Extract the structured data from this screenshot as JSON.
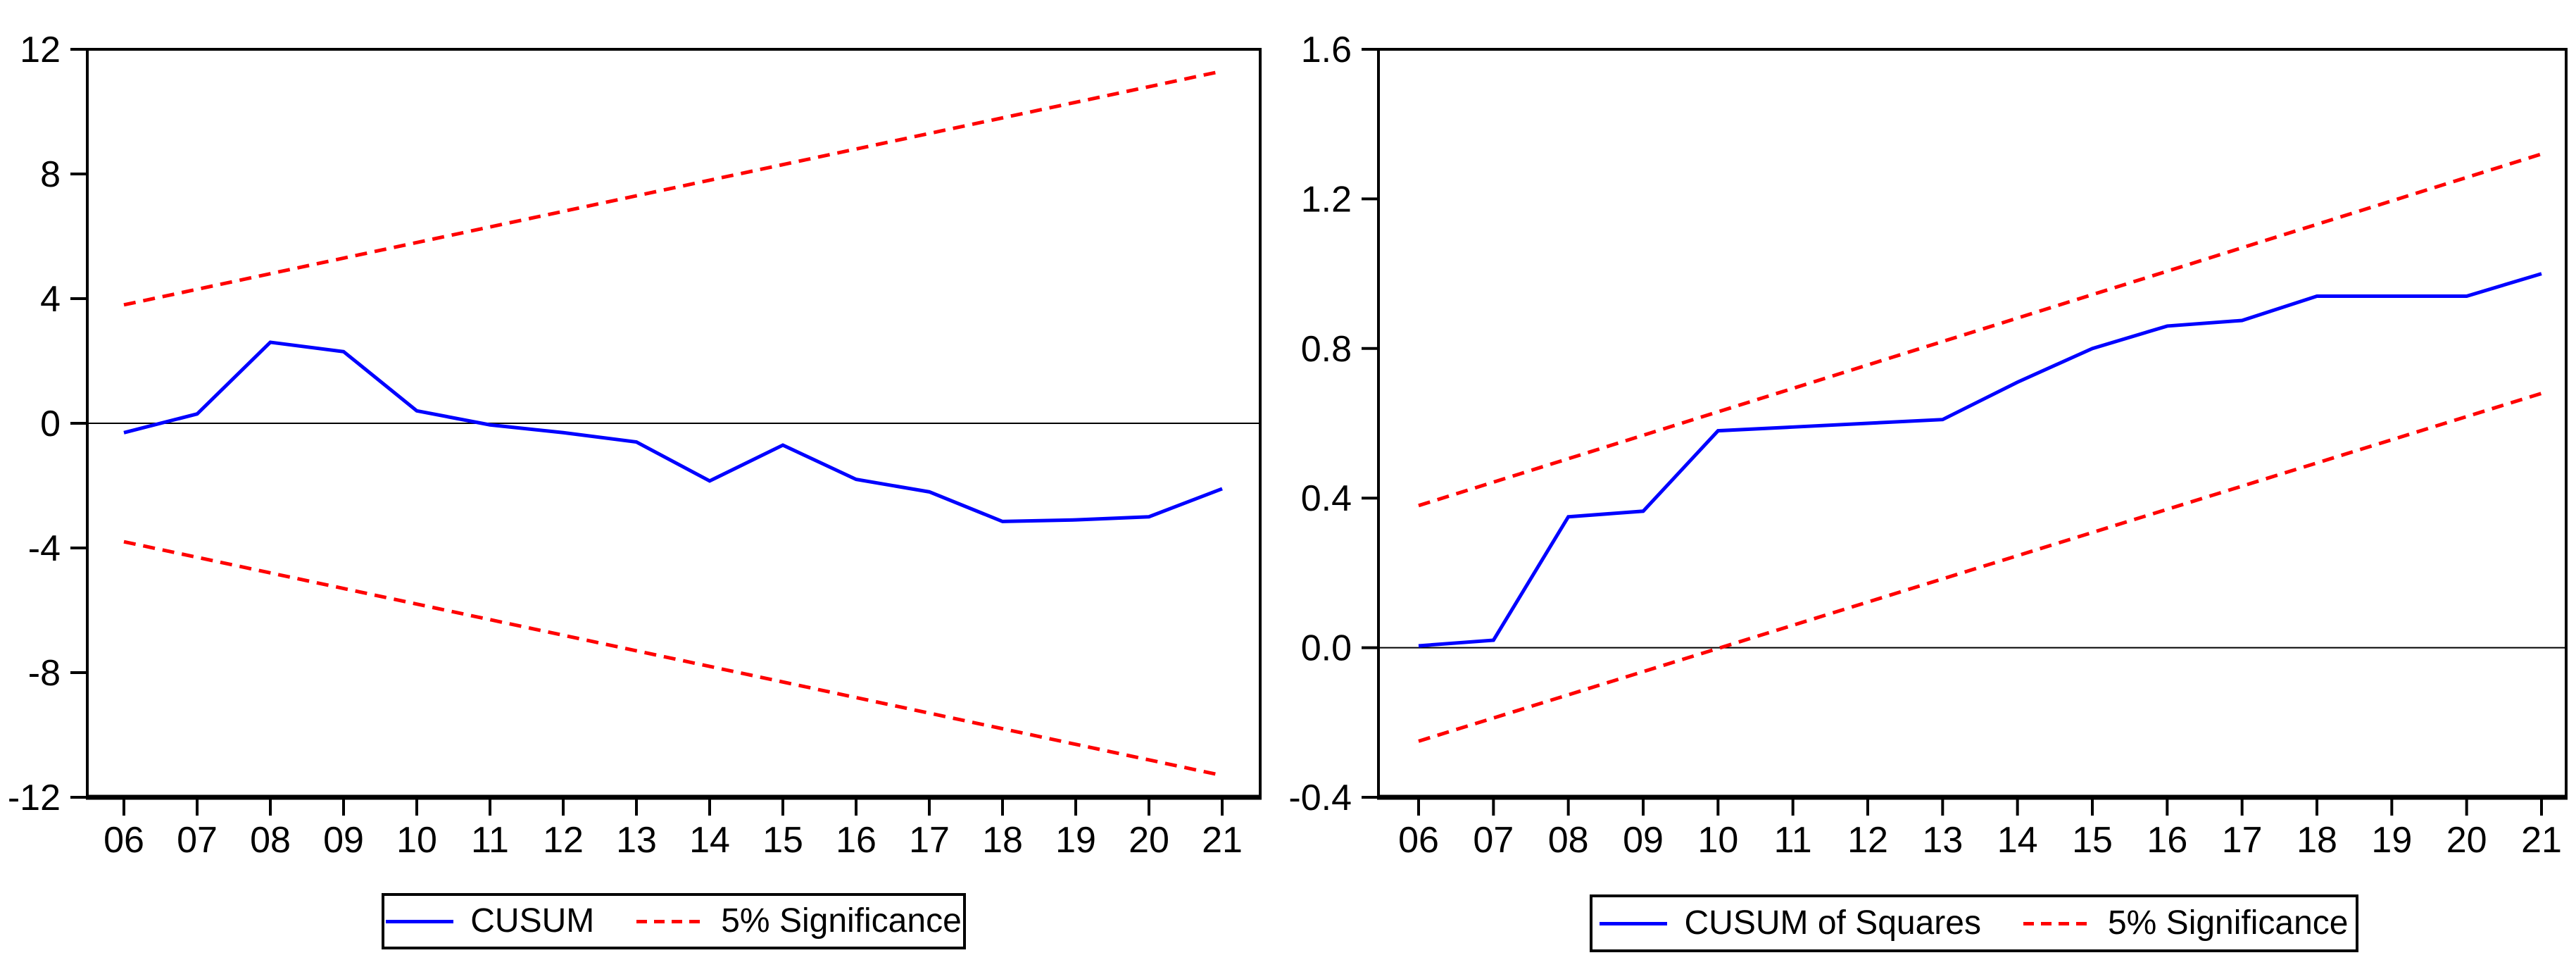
{
  "figure": {
    "background": "#ffffff",
    "text_color": "#000000"
  },
  "chart_data": [
    {
      "name": "cusum",
      "type": "line",
      "title": "",
      "xlabel": "",
      "ylabel": "",
      "grid": false,
      "zero_line": true,
      "legend_position": "bottom-center",
      "x_tick_labels": [
        "06",
        "07",
        "08",
        "09",
        "10",
        "11",
        "12",
        "13",
        "14",
        "15",
        "16",
        "17",
        "18",
        "19",
        "20",
        "21"
      ],
      "ylim": [
        -12,
        12
      ],
      "yticks": [
        12,
        8,
        4,
        0,
        -4,
        -8,
        -12
      ],
      "y_tick_labels": [
        "12",
        "8",
        "4",
        "0",
        "-4",
        "-8",
        "-12"
      ],
      "series": [
        {
          "name": "cusum-line",
          "color": "#0000ff",
          "dash": "solid",
          "values": [
            -0.3,
            0.3,
            2.6,
            2.3,
            0.4,
            -0.05,
            -0.3,
            -0.6,
            -1.85,
            -0.7,
            -1.8,
            -2.2,
            -3.15,
            -3.1,
            -3.0,
            -2.1
          ]
        },
        {
          "name": "significance-upper-line",
          "color": "#ff0000",
          "dash": "dashed",
          "endpoints": true,
          "values": [
            3.8,
            11.3
          ]
        },
        {
          "name": "significance-lower-line",
          "color": "#ff0000",
          "dash": "dashed",
          "endpoints": true,
          "values": [
            -3.8,
            -11.3
          ]
        }
      ],
      "legend": [
        {
          "label": "CUSUM",
          "color": "#0000ff",
          "dash": "solid"
        },
        {
          "label": "5% Significance",
          "color": "#ff0000",
          "dash": "dashed"
        }
      ]
    },
    {
      "name": "cusum-of-squares",
      "type": "line",
      "title": "",
      "xlabel": "",
      "ylabel": "",
      "grid": false,
      "zero_line": true,
      "legend_position": "bottom-center",
      "x_tick_labels": [
        "06",
        "07",
        "08",
        "09",
        "10",
        "11",
        "12",
        "13",
        "14",
        "15",
        "16",
        "17",
        "18",
        "19",
        "20",
        "21"
      ],
      "ylim": [
        -0.4,
        1.6
      ],
      "yticks": [
        1.6,
        1.2,
        0.8,
        0.4,
        0.0,
        -0.4
      ],
      "y_tick_labels": [
        "1.6",
        "1.2",
        "0.8",
        "0.4",
        "0.0",
        "-0.4"
      ],
      "series": [
        {
          "name": "cusum-of-squares-line",
          "color": "#0000ff",
          "dash": "solid",
          "values": [
            0.005,
            0.02,
            0.35,
            0.365,
            0.58,
            0.59,
            0.6,
            0.61,
            0.71,
            0.8,
            0.86,
            0.875,
            0.94,
            0.94,
            0.94,
            1.0
          ]
        },
        {
          "name": "significance-upper-line",
          "color": "#ff0000",
          "dash": "dashed",
          "endpoints": true,
          "values": [
            0.38,
            1.32
          ]
        },
        {
          "name": "significance-lower-line",
          "color": "#ff0000",
          "dash": "dashed",
          "endpoints": true,
          "values": [
            -0.25,
            0.68
          ]
        }
      ],
      "legend": [
        {
          "label": "CUSUM of Squares",
          "color": "#0000ff",
          "dash": "solid"
        },
        {
          "label": "5% Significance",
          "color": "#ff0000",
          "dash": "dashed"
        }
      ]
    }
  ]
}
